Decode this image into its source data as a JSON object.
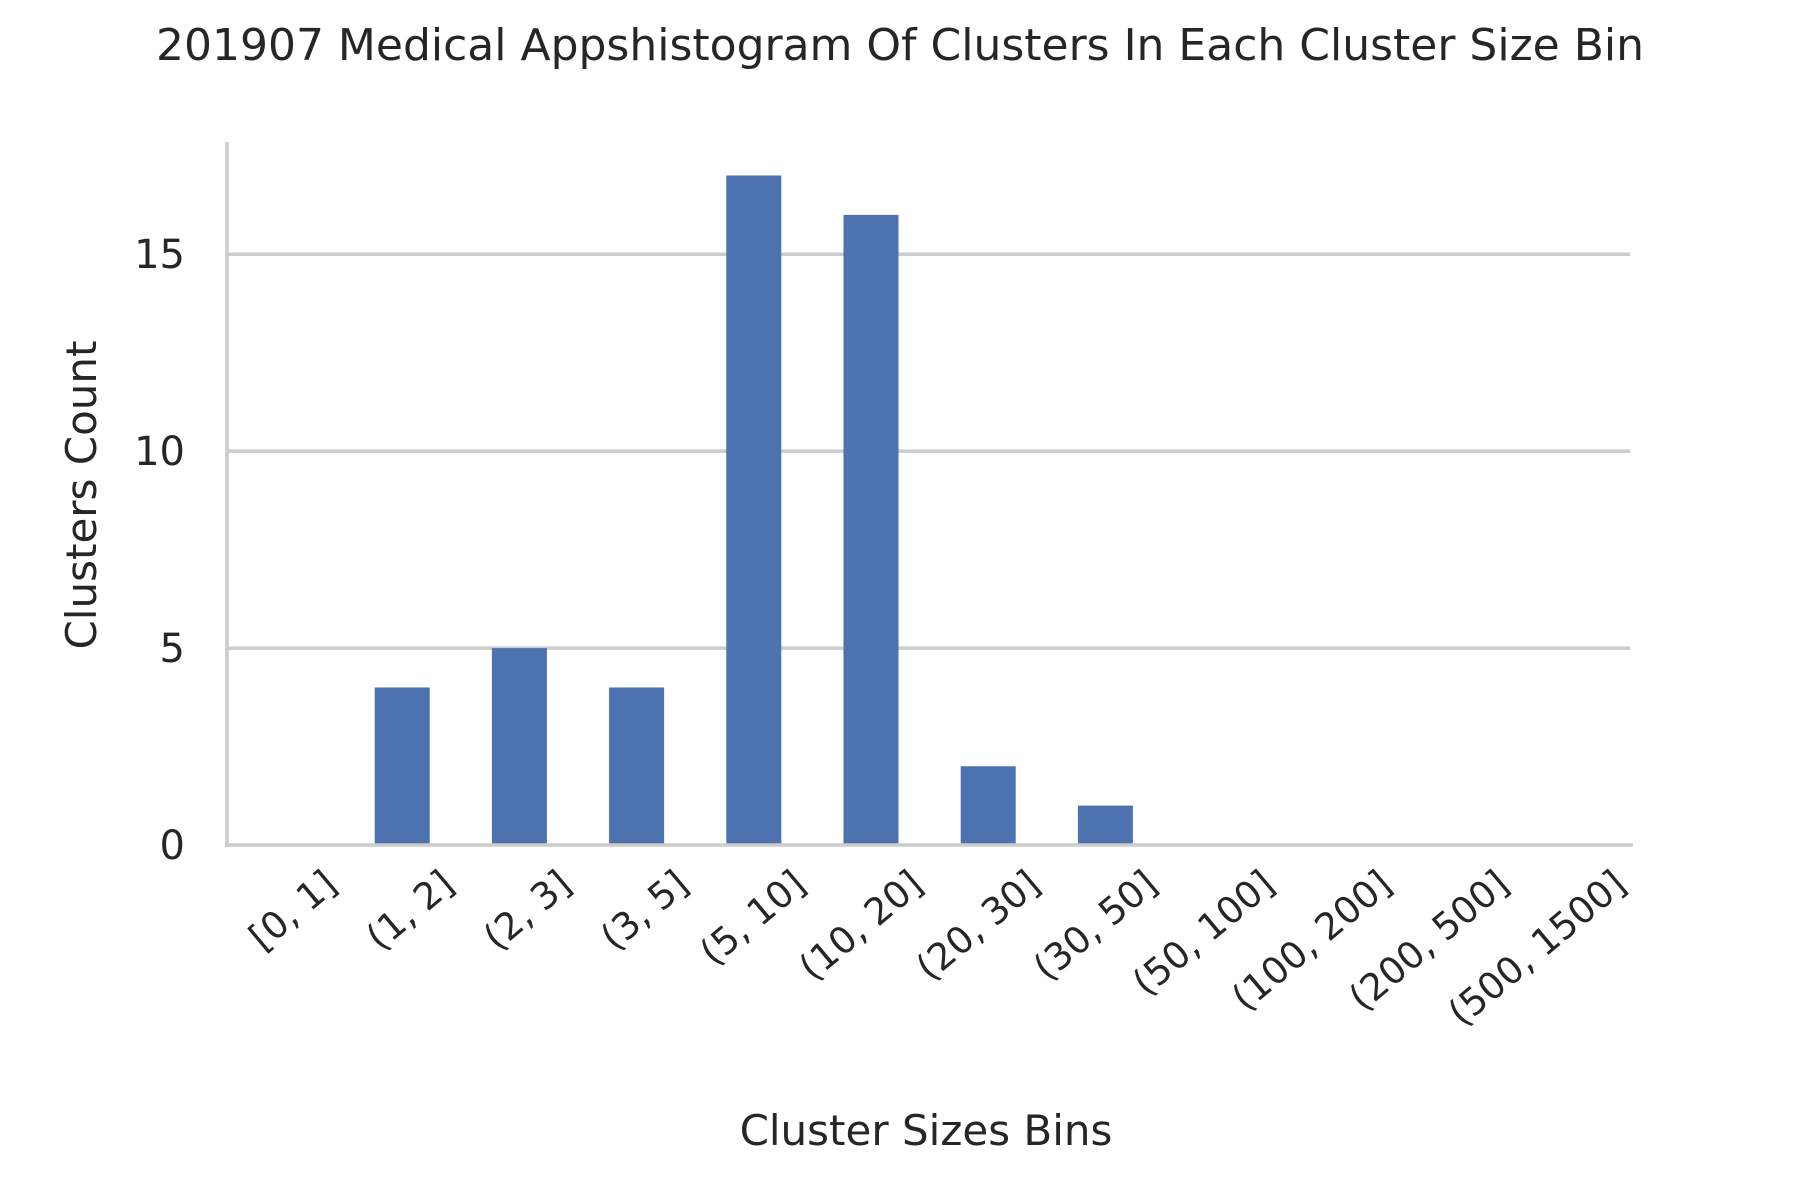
{
  "chart_data": {
    "type": "bar",
    "title": "201907 Medical Appshistogram Of Clusters In Each Cluster Size Bin",
    "xlabel": "Cluster Sizes Bins",
    "ylabel": "Clusters Count",
    "categories": [
      "[0, 1]",
      "(1, 2]",
      "(2, 3]",
      "(3, 5]",
      "(5, 10]",
      "(10, 20]",
      "(20, 30]",
      "(30, 50]",
      "(50, 100]",
      "(100, 200]",
      "(200, 500]",
      "(500, 1500]"
    ],
    "values": [
      0,
      4,
      5,
      4,
      17,
      16,
      2,
      1,
      0,
      0,
      0,
      0
    ],
    "ylim": [
      0,
      17.85
    ],
    "yticks": [
      0,
      5,
      10,
      15
    ],
    "grid": "horizontal",
    "colors": {
      "bar": "#4c72b0",
      "grid": "#cccccc",
      "spine": "#cccccc",
      "text": "#262626"
    }
  }
}
